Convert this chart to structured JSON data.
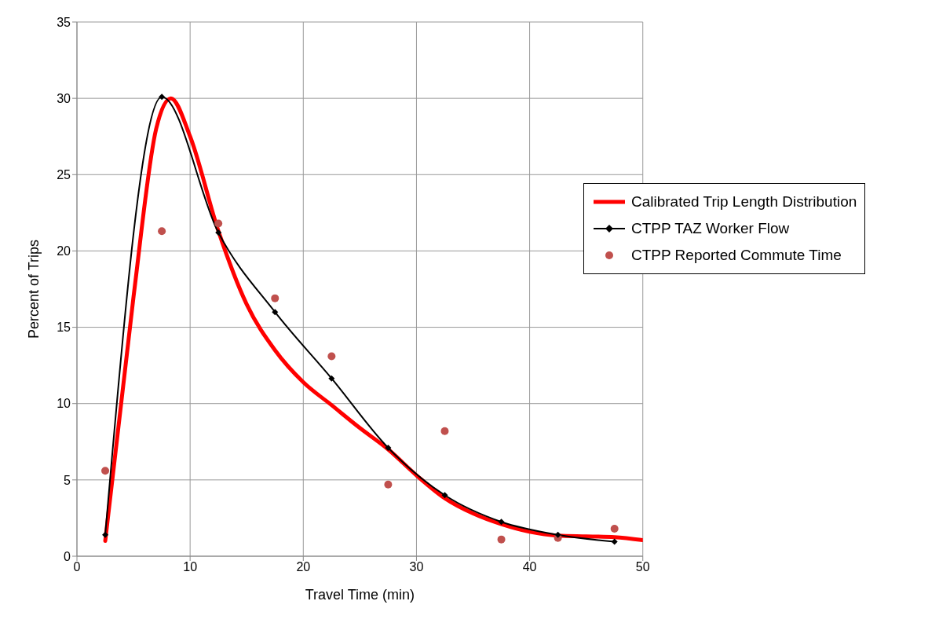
{
  "chart_data": {
    "type": "line",
    "xlabel": "Travel Time (min)",
    "ylabel": "Percent of Trips",
    "xlim": [
      0,
      50
    ],
    "xticks": [
      0,
      10,
      20,
      30,
      40,
      50
    ],
    "ylim": [
      0,
      35
    ],
    "yticks": [
      0,
      5,
      10,
      15,
      20,
      25,
      30,
      35
    ],
    "grid": true,
    "legend": "right",
    "line_style": "solid",
    "series": [
      {
        "name": "Calibrated Trip Length Distribution",
        "color": "#ff0000",
        "marker": "none",
        "x": [
          2.5,
          5,
          7,
          8.3,
          10,
          12.5,
          15,
          17.5,
          20,
          22.5,
          25,
          27.5,
          30,
          32.5,
          35,
          37.5,
          40,
          42.5,
          45,
          47.5,
          50
        ],
        "values": [
          1.0,
          17,
          28,
          30.0,
          27.5,
          21.3,
          16.5,
          13.5,
          11.4,
          9.9,
          8.4,
          7.0,
          5.3,
          3.8,
          2.8,
          2.1,
          1.6,
          1.35,
          1.3,
          1.25,
          1.05
        ]
      },
      {
        "name": "CTPP TAZ Worker Flow",
        "color": "#000000",
        "marker": "diamond",
        "x": [
          2.5,
          7.5,
          12.5,
          17.5,
          22.5,
          27.5,
          32.5,
          37.5,
          42.5,
          47.5
        ],
        "values": [
          1.4,
          30.1,
          21.2,
          16.0,
          11.65,
          7.1,
          4.0,
          2.25,
          1.4,
          0.95
        ]
      },
      {
        "name": "CTPP Reported Commute Time",
        "type": "scatter",
        "color": "#c0504d",
        "marker": "circle",
        "x": [
          2.5,
          7.5,
          12.5,
          17.5,
          22.5,
          27.5,
          32.5,
          37.5,
          42.5,
          47.5
        ],
        "values": [
          5.6,
          21.3,
          21.8,
          16.9,
          13.1,
          4.7,
          8.2,
          1.1,
          1.2,
          1.8
        ]
      }
    ]
  }
}
